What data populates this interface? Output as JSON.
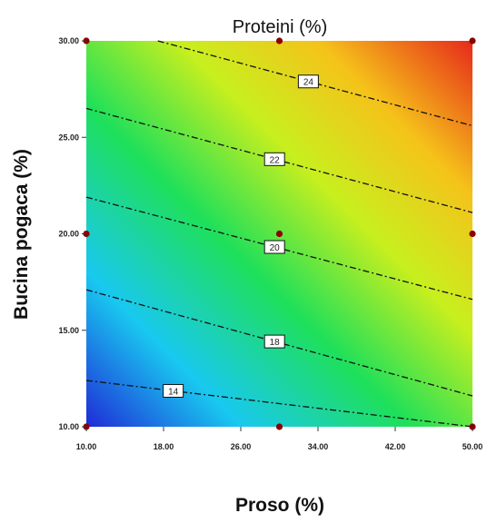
{
  "chart_data": {
    "type": "heatmap",
    "subtype": "contour",
    "title": "Proteini (%)",
    "xlabel": "Proso (%)",
    "ylabel": "Bucina pogaca (%)",
    "xlim": [
      10,
      50
    ],
    "ylim": [
      10,
      30
    ],
    "x_ticks": [
      "10.00",
      "18.00",
      "26.00",
      "34.00",
      "42.00",
      "50.00"
    ],
    "y_ticks": [
      "10.00",
      "15.00",
      "20.00",
      "25.00",
      "30.00"
    ],
    "color_scale": [
      "#1f2bd6",
      "#19c8f0",
      "#1fe05a",
      "#c8ef1e",
      "#f5c21a",
      "#e62a1a"
    ],
    "contours": [
      {
        "label": "14",
        "label_x": 19,
        "left_y": 12.4,
        "right_y": 10
      },
      {
        "label": "18",
        "label_x": 29.5,
        "left_y": 17.1,
        "right_y": 11.6
      },
      {
        "label": "20",
        "label_x": 29.5,
        "left_y": 21.9,
        "right_y": 16.6
      },
      {
        "label": "22",
        "label_x": 29.5,
        "left_y": 26.5,
        "right_y": 21.1
      },
      {
        "label": "24",
        "label_x": 33,
        "left_y": 31.0,
        "right_y": 25.6
      }
    ],
    "design_points": [
      {
        "x": 10,
        "y": 10
      },
      {
        "x": 30,
        "y": 10
      },
      {
        "x": 50,
        "y": 10
      },
      {
        "x": 10,
        "y": 20
      },
      {
        "x": 30,
        "y": 20
      },
      {
        "x": 50,
        "y": 20
      },
      {
        "x": 10,
        "y": 30
      },
      {
        "x": 30,
        "y": 30
      },
      {
        "x": 50,
        "y": 30
      }
    ],
    "design_point_color": "#8b0000"
  }
}
